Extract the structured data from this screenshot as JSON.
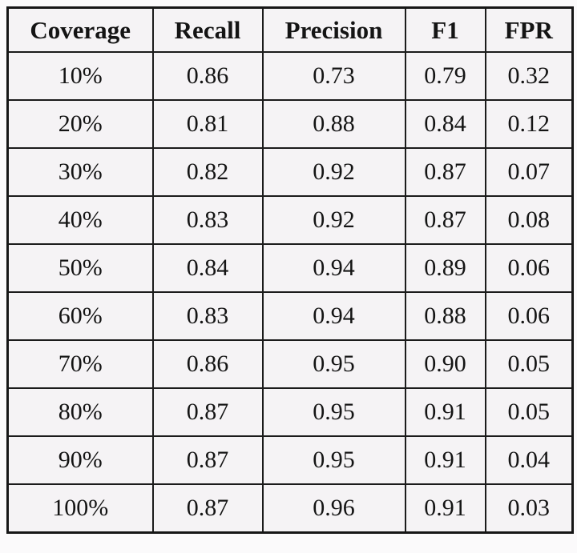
{
  "page": {
    "background_color": "#fbfafb",
    "cell_background_color": "#f5f3f5",
    "border_color": "#1b1b1b",
    "text_color": "#141414"
  },
  "chart_data": {
    "type": "table",
    "title": "",
    "columns": [
      "Coverage",
      "Recall",
      "Precision",
      "F1",
      "FPR"
    ],
    "categories": [
      "10%",
      "20%",
      "30%",
      "40%",
      "50%",
      "60%",
      "70%",
      "80%",
      "90%",
      "100%"
    ],
    "series": [
      {
        "name": "Recall",
        "values": [
          0.86,
          0.81,
          0.82,
          0.83,
          0.84,
          0.83,
          0.86,
          0.87,
          0.87,
          0.87
        ]
      },
      {
        "name": "Precision",
        "values": [
          0.73,
          0.88,
          0.92,
          0.92,
          0.94,
          0.94,
          0.95,
          0.95,
          0.95,
          0.96
        ]
      },
      {
        "name": "F1",
        "values": [
          0.79,
          0.84,
          0.87,
          0.87,
          0.89,
          0.88,
          0.9,
          0.91,
          0.91,
          0.91
        ]
      },
      {
        "name": "FPR",
        "values": [
          0.32,
          0.12,
          0.07,
          0.08,
          0.06,
          0.06,
          0.05,
          0.05,
          0.04,
          0.03
        ]
      }
    ],
    "display_rows": [
      [
        "10%",
        "0.86",
        "0.73",
        "0.79",
        "0.32"
      ],
      [
        "20%",
        "0.81",
        "0.88",
        "0.84",
        "0.12"
      ],
      [
        "30%",
        "0.82",
        "0.92",
        "0.87",
        "0.07"
      ],
      [
        "40%",
        "0.83",
        "0.92",
        "0.87",
        "0.08"
      ],
      [
        "50%",
        "0.84",
        "0.94",
        "0.89",
        "0.06"
      ],
      [
        "60%",
        "0.83",
        "0.94",
        "0.88",
        "0.06"
      ],
      [
        "70%",
        "0.86",
        "0.95",
        "0.90",
        "0.05"
      ],
      [
        "80%",
        "0.87",
        "0.95",
        "0.91",
        "0.05"
      ],
      [
        "90%",
        "0.87",
        "0.95",
        "0.91",
        "0.04"
      ],
      [
        "100%",
        "0.87",
        "0.96",
        "0.91",
        "0.03"
      ]
    ]
  }
}
